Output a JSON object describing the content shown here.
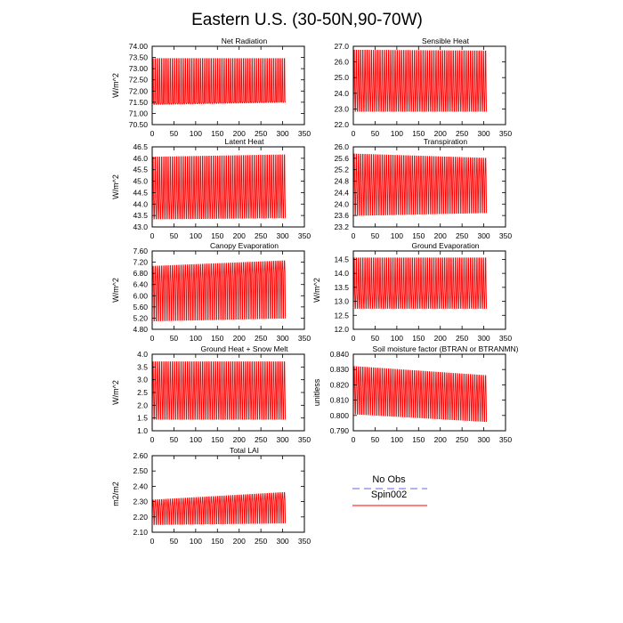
{
  "figure_title": "Eastern U.S. (30-50N,90-70W)",
  "colors": {
    "model": "#ff0000",
    "obs": "#9999ee",
    "axis": "#000000"
  },
  "legend": {
    "entries": [
      {
        "label": "No Obs",
        "color": "#9999ee",
        "dash": true
      },
      {
        "label": "Spin002",
        "color": "#ff0000",
        "dash": false
      }
    ]
  },
  "chart_data": [
    {
      "type": "line",
      "title": "Net Radiation",
      "ylabel": "W/m^2",
      "xlim": [
        0,
        350
      ],
      "xticks": [
        0,
        50,
        100,
        150,
        200,
        250,
        300,
        350
      ],
      "ylim": [
        70.5,
        74.0
      ],
      "yticks": [
        "74.00",
        "73.50",
        "73.00",
        "72.50",
        "72.00",
        "71.50",
        "71.00",
        "70.50"
      ],
      "series": [
        {
          "name": "Spin002",
          "x_range": [
            0,
            307
          ],
          "cycles": 62,
          "peak": [
            73.45,
            73.45
          ],
          "trough": [
            71.4,
            71.5
          ],
          "mid": [
            71.45,
            71.55
          ]
        }
      ]
    },
    {
      "type": "line",
      "title": "Sensible Heat",
      "ylabel": "",
      "xlim": [
        0,
        350
      ],
      "xticks": [
        0,
        50,
        100,
        150,
        200,
        250,
        300,
        350
      ],
      "ylim": [
        22.0,
        27.0
      ],
      "yticks": [
        "27.0",
        "26.0",
        "25.0",
        "24.0",
        "23.0",
        "22.0"
      ],
      "series": [
        {
          "name": "Spin002",
          "x_range": [
            0,
            307
          ],
          "cycles": 62,
          "peak": [
            26.75,
            26.7
          ],
          "trough": [
            22.85,
            22.85
          ],
          "mid": [
            24.3,
            24.2
          ]
        }
      ]
    },
    {
      "type": "line",
      "title": "Latent Heat",
      "ylabel": "W/m^2",
      "xlim": [
        0,
        350
      ],
      "xticks": [
        0,
        50,
        100,
        150,
        200,
        250,
        300,
        350
      ],
      "ylim": [
        43.0,
        46.5
      ],
      "yticks": [
        "46.5",
        "46.0",
        "45.5",
        "45.0",
        "44.5",
        "44.0",
        "43.5",
        "43.0"
      ],
      "series": [
        {
          "name": "Spin002",
          "x_range": [
            0,
            307
          ],
          "cycles": 62,
          "peak": [
            46.05,
            46.15
          ],
          "trough": [
            43.35,
            43.4
          ],
          "mid": [
            44.2,
            44.4
          ]
        }
      ]
    },
    {
      "type": "line",
      "title": "Transpiration",
      "ylabel": "",
      "xlim": [
        0,
        350
      ],
      "xticks": [
        0,
        50,
        100,
        150,
        200,
        250,
        300,
        350
      ],
      "ylim": [
        23.2,
        26.0
      ],
      "yticks": [
        "26.0",
        "25.6",
        "25.2",
        "24.8",
        "24.4",
        "24.0",
        "23.6",
        "23.2"
      ],
      "series": [
        {
          "name": "Spin002",
          "x_range": [
            0,
            307
          ],
          "cycles": 62,
          "peak": [
            25.75,
            25.6
          ],
          "trough": [
            23.6,
            23.7
          ],
          "mid": [
            24.6,
            24.9
          ]
        }
      ]
    },
    {
      "type": "line",
      "title": "Canopy Evaporation",
      "ylabel": "W/m^2",
      "xlim": [
        0,
        350
      ],
      "xticks": [
        0,
        50,
        100,
        150,
        200,
        250,
        300,
        350
      ],
      "ylim": [
        4.8,
        7.6
      ],
      "yticks": [
        "7.60",
        "7.20",
        "6.80",
        "6.40",
        "6.00",
        "5.60",
        "5.20",
        "4.80"
      ],
      "series": [
        {
          "name": "Spin002",
          "x_range": [
            0,
            307
          ],
          "cycles": 62,
          "peak": [
            7.05,
            7.25
          ],
          "trough": [
            5.1,
            5.2
          ],
          "mid": [
            6.4,
            6.85
          ]
        }
      ]
    },
    {
      "type": "line",
      "title": "Ground Evaporation",
      "ylabel": "W/m^2",
      "xlim": [
        0,
        350
      ],
      "xticks": [
        0,
        50,
        100,
        150,
        200,
        250,
        300,
        350
      ],
      "ylim": [
        12.0,
        14.8
      ],
      "yticks": [
        "14.5",
        "14.0",
        "13.5",
        "13.0",
        "12.5",
        "12.0"
      ],
      "series": [
        {
          "name": "Spin002",
          "x_range": [
            0,
            307
          ],
          "cycles": 62,
          "peak": [
            14.55,
            14.55
          ],
          "trough": [
            12.75,
            12.75
          ],
          "mid": [
            13.3,
            13.4
          ]
        }
      ]
    },
    {
      "type": "line",
      "title": "Ground Heat + Snow Melt",
      "ylabel": "W/m^2",
      "xlim": [
        0,
        350
      ],
      "xticks": [
        0,
        50,
        100,
        150,
        200,
        250,
        300,
        350
      ],
      "ylim": [
        1.0,
        4.0
      ],
      "yticks": [
        "4.0",
        "3.5",
        "3.0",
        "2.5",
        "2.0",
        "1.5",
        "1.0"
      ],
      "series": [
        {
          "name": "Spin002",
          "x_range": [
            0,
            307
          ],
          "cycles": 62,
          "peak": [
            3.7,
            3.7
          ],
          "trough": [
            1.45,
            1.45
          ],
          "mid": [
            2.5,
            2.5
          ]
        }
      ]
    },
    {
      "type": "line",
      "title": "Soil moisture factor (BTRAN or BTRANMN)",
      "ylabel": "unitless",
      "xlim": [
        0,
        350
      ],
      "xticks": [
        0,
        50,
        100,
        150,
        200,
        250,
        300,
        350
      ],
      "ylim": [
        0.79,
        0.84
      ],
      "yticks": [
        "0.840",
        "0.830",
        "0.820",
        "0.810",
        "0.800",
        "0.790"
      ],
      "series": [
        {
          "name": "Spin002",
          "x_range": [
            0,
            307
          ],
          "cycles": 62,
          "peak": [
            0.832,
            0.826
          ],
          "trough": [
            0.801,
            0.796
          ],
          "mid": [
            0.818,
            0.813
          ]
        }
      ]
    },
    {
      "type": "line",
      "title": "Total LAI",
      "ylabel": "m2/m2",
      "xlim": [
        0,
        350
      ],
      "xticks": [
        0,
        50,
        100,
        150,
        200,
        250,
        300,
        350
      ],
      "ylim": [
        2.1,
        2.6
      ],
      "yticks": [
        "2.60",
        "2.50",
        "2.40",
        "2.30",
        "2.20",
        "2.10"
      ],
      "series": [
        {
          "name": "Spin002",
          "x_range": [
            0,
            307
          ],
          "cycles": 62,
          "peak": [
            2.31,
            2.36
          ],
          "trough": [
            2.15,
            2.16
          ],
          "mid": [
            2.26,
            2.31
          ]
        }
      ]
    }
  ]
}
